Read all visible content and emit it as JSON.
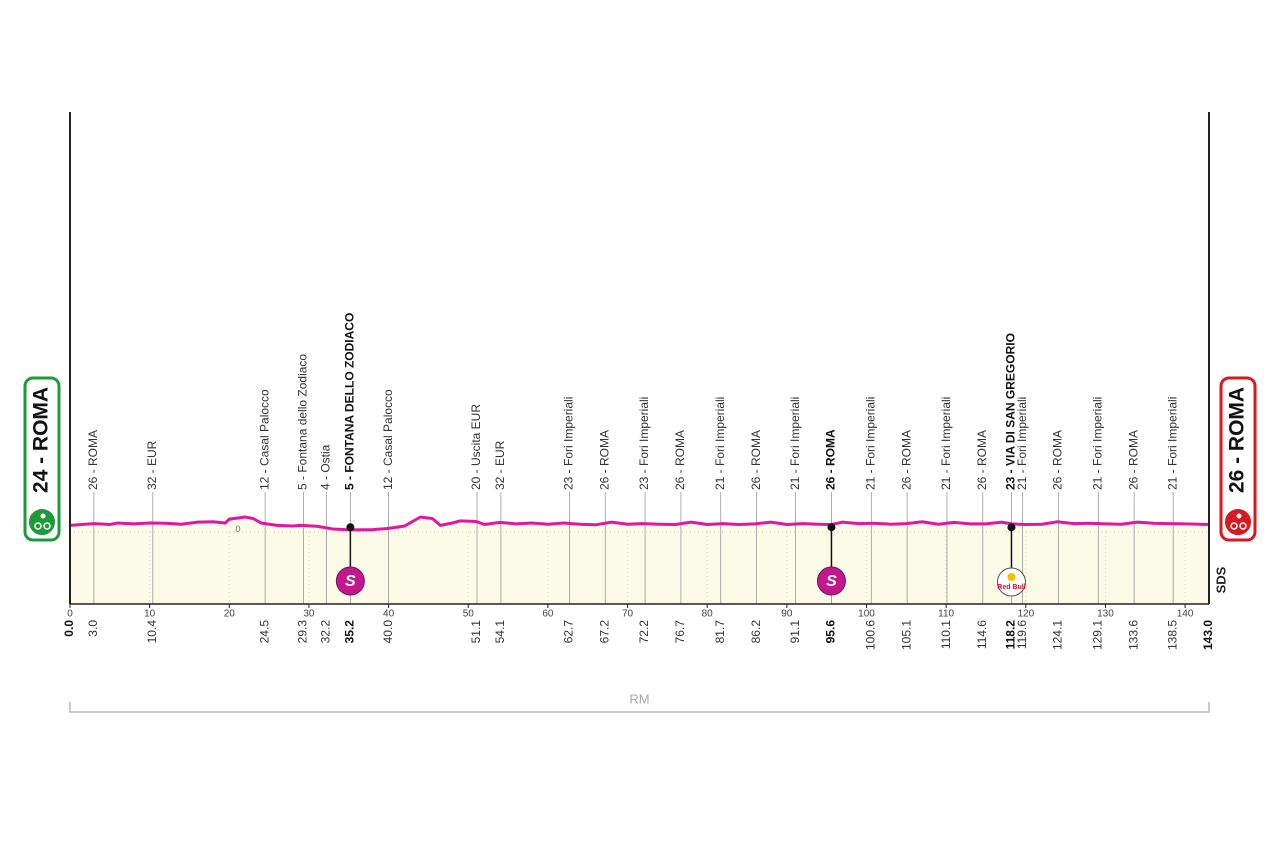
{
  "chart_data": {
    "type": "profile",
    "start": "24 - ROMA",
    "finish": "26 - ROMA",
    "region": "RM",
    "brand": "SDS",
    "line_color": "#e3179d",
    "fill_color": "#fbfbe8",
    "xlim": [
      0,
      143
    ],
    "xticks": [
      0,
      10,
      20,
      30,
      40,
      50,
      60,
      70,
      80,
      90,
      100,
      110,
      120,
      130,
      140
    ],
    "ylim": [
      -240,
      120
    ],
    "yticks": [
      0
    ],
    "grid": true,
    "profile": {
      "x": [
        0,
        3,
        5,
        6,
        8,
        10,
        12,
        14,
        16,
        18,
        19.5,
        20,
        22,
        23,
        24,
        26,
        28,
        29,
        31,
        33,
        35.2,
        38,
        40,
        42,
        44,
        45.5,
        46.5,
        48,
        49,
        51,
        52,
        54,
        56,
        58,
        60,
        62,
        64,
        66,
        68,
        70,
        72,
        74,
        76,
        78,
        80,
        82,
        84,
        86,
        88,
        90,
        92,
        94,
        95.6,
        97,
        99,
        101,
        103,
        105,
        107,
        109,
        111,
        113,
        115,
        117,
        118.2,
        120,
        122,
        124,
        126,
        128,
        130,
        132,
        134,
        136,
        138,
        140,
        143
      ],
      "y": [
        22,
        28,
        25,
        30,
        27,
        30,
        29,
        26,
        33,
        34,
        30,
        43,
        50,
        45,
        30,
        22,
        20,
        22,
        19,
        10,
        7,
        8,
        12,
        20,
        50,
        45,
        22,
        30,
        37,
        35,
        25,
        32,
        27,
        30,
        26,
        30,
        26,
        24,
        33,
        26,
        28,
        26,
        25,
        33,
        25,
        28,
        25,
        27,
        33,
        25,
        28,
        26,
        25,
        33,
        28,
        29,
        26,
        28,
        34,
        26,
        32,
        27,
        27,
        33,
        27,
        25,
        26,
        34,
        28,
        29,
        27,
        26,
        33,
        29,
        28,
        27,
        25
      ]
    },
    "waypoints": {
      "names": [
        null,
        "26 - ROMA",
        "32 - EUR",
        "12 - Casal Palocco",
        "5 - Fontana dello Zodiaco",
        "4 - Ostia",
        "5 - FONTANA DELLO ZODIACO",
        "12 - Casal Palocco",
        "20 - Uscita EUR",
        "32 - EUR",
        "23 - Fori Imperiali",
        "26 - ROMA",
        "23 - Fori Imperiali",
        "26 - ROMA",
        "21 - Fori Imperiali",
        "26 - ROMA",
        "21 - Fori Imperiali",
        "26 - ROMA",
        "21 - Fori Imperiali",
        "26 - ROMA",
        "21 - Fori Imperiali",
        "26 - ROMA",
        "23 - VIA DI SAN GREGORIO",
        "21 - Fori Imperiali",
        "26 - ROMA",
        "21 - Fori Imperiali",
        "26 - ROMA",
        "21 - Fori Imperiali",
        null
      ],
      "values": [
        0,
        3,
        10.4,
        24.5,
        29.3,
        32.2,
        35.2,
        40,
        51.1,
        54.1,
        62.7,
        67.2,
        72.2,
        76.7,
        81.7,
        86.2,
        91.1,
        95.6,
        100.6,
        105.1,
        110.1,
        114.6,
        118.2,
        119.6,
        124.1,
        129.1,
        133.6,
        138.5,
        143
      ],
      "value_labels": [
        "0.0",
        "3.0",
        "10.4",
        "24.5",
        "29.3",
        "32.2",
        "35.2",
        "40.0",
        "51.1",
        "54.1",
        "62.7",
        "67.2",
        "72.2",
        "76.7",
        "81.7",
        "86.2",
        "91.1",
        "95.6",
        "100.6",
        "105.1",
        "110.1",
        "114.6",
        "118.2",
        "119.6",
        "124.1",
        "129.1",
        "133.6",
        "138.5",
        "143.0"
      ],
      "bold": [
        true,
        false,
        false,
        false,
        false,
        false,
        true,
        false,
        false,
        false,
        false,
        false,
        false,
        false,
        false,
        false,
        false,
        true,
        false,
        false,
        false,
        false,
        true,
        false,
        false,
        false,
        false,
        false,
        true
      ]
    },
    "sprints": {
      "values": [
        35.2,
        95.6
      ],
      "label": "S",
      "color": "#c2188b"
    },
    "bonus": {
      "value": 118.2,
      "label": "Red Bull"
    }
  }
}
